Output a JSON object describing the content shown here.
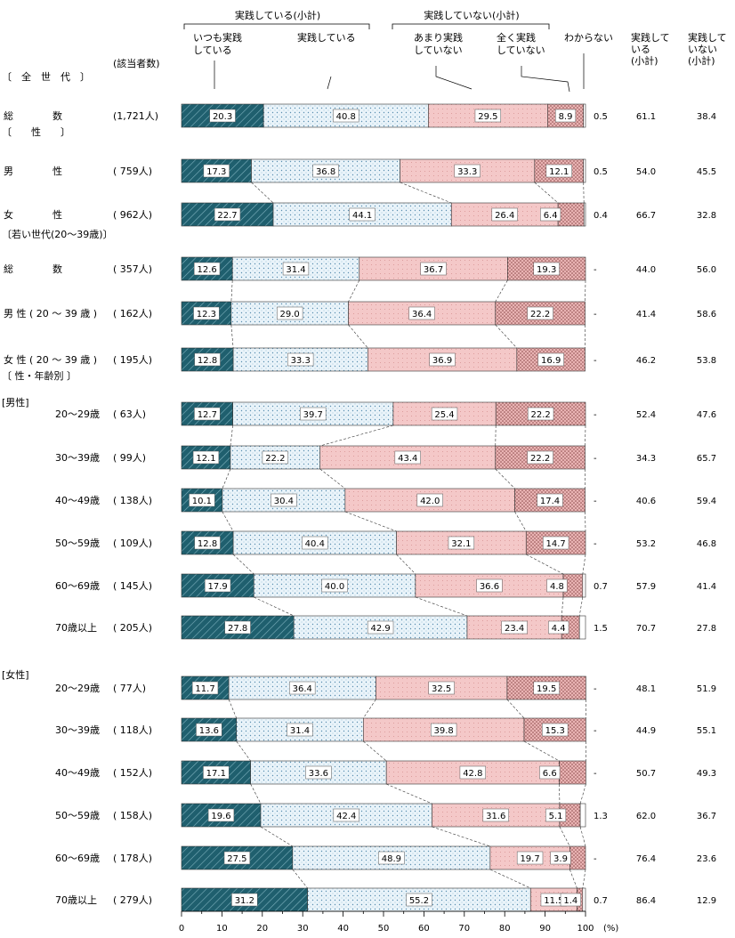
{
  "chart_data": {
    "type": "bar",
    "stacked": true,
    "orientation": "horizontal",
    "header": {
      "group_practicing": "実践している(小計)",
      "group_not_practicing": "実践していない(小計)",
      "cat_always": "いつも実践\nしている",
      "cat_practicing": "実践している",
      "cat_rarely": "あまり実践\nしていない",
      "cat_never": "全く実践\nしていない",
      "cat_unknown": "わからない",
      "subtotal_yes": "実践して\nいる\n(小計)",
      "subtotal_no": "実践して\nいない\n(小計)",
      "n_header": "(該当者数)"
    },
    "section_labels": {
      "all": "〔　全　世　代　〕",
      "sex": "〔　　性　　〕",
      "young": "〔若い世代(20～39歳)〕",
      "sex_age": "〔 性・年齢別 〕",
      "male": "[男性]",
      "female": "[女性]"
    },
    "series": [
      {
        "name": "いつも実践している",
        "color": "#1f5f6e"
      },
      {
        "name": "実践している",
        "color": "#e6f2f8"
      },
      {
        "name": "あまり実践していない",
        "color": "#f2c3c3"
      },
      {
        "name": "全く実践していない",
        "color": "#c98b8b"
      },
      {
        "name": "わからない",
        "color": "#ffffff"
      }
    ],
    "rows": [
      {
        "label": "総　　　　数",
        "n": "(1,721人)",
        "values": [
          20.3,
          40.8,
          29.5,
          8.9,
          0.5
        ],
        "labels": [
          "20.3",
          "40.8",
          "29.5",
          "8.9",
          "0.5"
        ],
        "subtotal_yes": "61.1",
        "subtotal_no": "38.4"
      },
      {
        "label": "男　　　　性",
        "n": "( 759人)",
        "values": [
          17.3,
          36.8,
          33.3,
          12.1,
          0.5
        ],
        "labels": [
          "17.3",
          "36.8",
          "33.3",
          "12.1",
          "0.5"
        ],
        "subtotal_yes": "54.0",
        "subtotal_no": "45.5"
      },
      {
        "label": "女　　　　性",
        "n": "( 962人)",
        "values": [
          22.7,
          44.1,
          26.4,
          6.4,
          0.4
        ],
        "labels": [
          "22.7",
          "44.1",
          "26.4",
          "6.4",
          "0.4"
        ],
        "subtotal_yes": "66.7",
        "subtotal_no": "32.8"
      },
      {
        "label": "総　　　　数",
        "n": "( 357人)",
        "values": [
          12.6,
          31.4,
          36.7,
          19.3,
          0
        ],
        "labels": [
          "12.6",
          "31.4",
          "36.7",
          "19.3",
          "-"
        ],
        "subtotal_yes": "44.0",
        "subtotal_no": "56.0"
      },
      {
        "label": "男 性 ( 20 ～ 39 歳 )",
        "n": "( 162人)",
        "values": [
          12.3,
          29.0,
          36.4,
          22.2,
          0
        ],
        "labels": [
          "12.3",
          "29.0",
          "36.4",
          "22.2",
          "-"
        ],
        "subtotal_yes": "41.4",
        "subtotal_no": "58.6"
      },
      {
        "label": "女 性 ( 20 ～ 39 歳 )",
        "n": "( 195人)",
        "values": [
          12.8,
          33.3,
          36.9,
          16.9,
          0
        ],
        "labels": [
          "12.8",
          "33.3",
          "36.9",
          "16.9",
          "-"
        ],
        "subtotal_yes": "46.2",
        "subtotal_no": "53.8"
      },
      {
        "label": "20～29歳",
        "n": "(  63人)",
        "values": [
          12.7,
          39.7,
          25.4,
          22.2,
          0
        ],
        "labels": [
          "12.7",
          "39.7",
          "25.4",
          "22.2",
          "-"
        ],
        "subtotal_yes": "52.4",
        "subtotal_no": "47.6"
      },
      {
        "label": "30～39歳",
        "n": "(  99人)",
        "values": [
          12.1,
          22.2,
          43.4,
          22.2,
          0
        ],
        "labels": [
          "12.1",
          "22.2",
          "43.4",
          "22.2",
          "-"
        ],
        "subtotal_yes": "34.3",
        "subtotal_no": "65.7"
      },
      {
        "label": "40～49歳",
        "n": "( 138人)",
        "values": [
          10.1,
          30.4,
          42.0,
          17.4,
          0
        ],
        "labels": [
          "10.1",
          "30.4",
          "42.0",
          "17.4",
          "-"
        ],
        "subtotal_yes": "40.6",
        "subtotal_no": "59.4"
      },
      {
        "label": "50～59歳",
        "n": "( 109人)",
        "values": [
          12.8,
          40.4,
          32.1,
          14.7,
          0
        ],
        "labels": [
          "12.8",
          "40.4",
          "32.1",
          "14.7",
          "-"
        ],
        "subtotal_yes": "53.2",
        "subtotal_no": "46.8"
      },
      {
        "label": "60～69歳",
        "n": "( 145人)",
        "values": [
          17.9,
          40.0,
          36.6,
          4.8,
          0.7
        ],
        "labels": [
          "17.9",
          "40.0",
          "36.6",
          "4.8",
          "0.7"
        ],
        "subtotal_yes": "57.9",
        "subtotal_no": "41.4"
      },
      {
        "label": "70歳以上",
        "n": "( 205人)",
        "values": [
          27.8,
          42.9,
          23.4,
          4.4,
          1.5
        ],
        "labels": [
          "27.8",
          "42.9",
          "23.4",
          "4.4",
          "1.5"
        ],
        "subtotal_yes": "70.7",
        "subtotal_no": "27.8"
      },
      {
        "label": "20～29歳",
        "n": "(  77人)",
        "values": [
          11.7,
          36.4,
          32.5,
          19.5,
          0
        ],
        "labels": [
          "11.7",
          "36.4",
          "32.5",
          "19.5",
          "-"
        ],
        "subtotal_yes": "48.1",
        "subtotal_no": "51.9"
      },
      {
        "label": "30～39歳",
        "n": "( 118人)",
        "values": [
          13.6,
          31.4,
          39.8,
          15.3,
          0
        ],
        "labels": [
          "13.6",
          "31.4",
          "39.8",
          "15.3",
          "-"
        ],
        "subtotal_yes": "44.9",
        "subtotal_no": "55.1"
      },
      {
        "label": "40～49歳",
        "n": "( 152人)",
        "values": [
          17.1,
          33.6,
          42.8,
          6.6,
          0
        ],
        "labels": [
          "17.1",
          "33.6",
          "42.8",
          "6.6",
          "-"
        ],
        "subtotal_yes": "50.7",
        "subtotal_no": "49.3"
      },
      {
        "label": "50～59歳",
        "n": "( 158人)",
        "values": [
          19.6,
          42.4,
          31.6,
          5.1,
          1.3
        ],
        "labels": [
          "19.6",
          "42.4",
          "31.6",
          "5.1",
          "1.3"
        ],
        "subtotal_yes": "62.0",
        "subtotal_no": "36.7"
      },
      {
        "label": "60～69歳",
        "n": "( 178人)",
        "values": [
          27.5,
          48.9,
          19.7,
          3.9,
          0
        ],
        "labels": [
          "27.5",
          "48.9",
          "19.7",
          "3.9",
          "-"
        ],
        "subtotal_yes": "76.4",
        "subtotal_no": "23.6"
      },
      {
        "label": "70歳以上",
        "n": "( 279人)",
        "values": [
          31.2,
          55.2,
          11.5,
          1.4,
          0.7
        ],
        "labels": [
          "31.2",
          "55.2",
          "11.5",
          "1.4",
          "0.7"
        ],
        "subtotal_yes": "86.4",
        "subtotal_no": "12.9"
      }
    ],
    "xlim": [
      0,
      100
    ],
    "xticks": [
      "0",
      "10",
      "20",
      "30",
      "40",
      "50",
      "60",
      "70",
      "80",
      "90",
      "100"
    ],
    "unit": "(%)"
  }
}
